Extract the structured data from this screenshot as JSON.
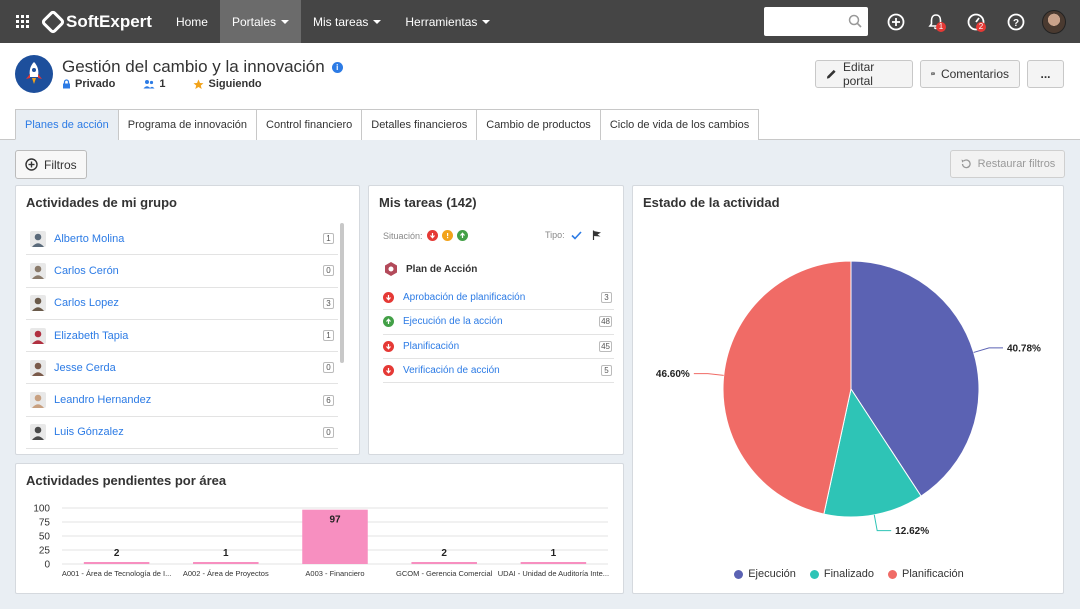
{
  "topbar": {
    "brand": "SoftExpert",
    "nav": [
      {
        "label": "Home",
        "dropdown": false,
        "active": false
      },
      {
        "label": "Portales",
        "dropdown": true,
        "active": true
      },
      {
        "label": "Mis tareas",
        "dropdown": true,
        "active": false
      },
      {
        "label": "Herramientas",
        "dropdown": true,
        "active": false
      }
    ],
    "search": {
      "value": "",
      "placeholder": ""
    },
    "notifications_badge": "1",
    "activity_badge": "2"
  },
  "portal": {
    "title": "Gestión del cambio y la innovación",
    "privacy": "Privado",
    "members": "1",
    "following": "Siguiendo",
    "buttons": {
      "edit": "Editar portal",
      "comments": "Comentarios",
      "more": "..."
    }
  },
  "tabs": [
    "Planes de acción",
    "Programa de innovación",
    "Control financiero",
    "Detalles financieros",
    "Cambio de productos",
    "Ciclo de vida de los cambios"
  ],
  "filters": {
    "filter_label": "Filtros",
    "restore_label": "Restaurar filtros"
  },
  "group_panel": {
    "title": "Actividades de mi grupo",
    "members": [
      {
        "name": "Alberto Molina",
        "count": "1",
        "color": "#5a6a7a"
      },
      {
        "name": "Carlos Cerón",
        "count": "0",
        "color": "#8a7a6a"
      },
      {
        "name": "Carlos Lopez",
        "count": "3",
        "color": "#6a5a4a"
      },
      {
        "name": "Elizabeth Tapia",
        "count": "1",
        "color": "#b03040"
      },
      {
        "name": "Jesse Cerda",
        "count": "0",
        "color": "#7a5a4a"
      },
      {
        "name": "Leandro Hernandez",
        "count": "6",
        "color": "#c8a080"
      },
      {
        "name": "Luis Gónzalez",
        "count": "0",
        "color": "#4a4a4a"
      }
    ]
  },
  "tasks_panel": {
    "title": "Mis tareas (142)",
    "situation_label": "Situación:",
    "type_label": "Tipo:",
    "group_title": "Plan de Acción",
    "items": [
      {
        "label": "Aprobación de planificación",
        "count": "3",
        "status": "late"
      },
      {
        "label": "Ejecución de la acción",
        "count": "48",
        "status": "ontime"
      },
      {
        "label": "Planificación",
        "count": "45",
        "status": "late"
      },
      {
        "label": "Verificación de acción",
        "count": "5",
        "status": "late"
      }
    ]
  },
  "pending_panel": {
    "title": "Actividades pendientes por área"
  },
  "status_panel": {
    "title": "Estado de la actividad"
  },
  "chart_data": [
    {
      "type": "bar",
      "title": "Actividades pendientes por área",
      "categories": [
        "A001 - Área de Tecnología de I...",
        "A002 - Área de Proyectos",
        "A003 - Financiero",
        "GCOM - Gerencia Comercial",
        "UDAI - Unidad de Auditoría Inte..."
      ],
      "values": [
        2,
        1,
        97,
        2,
        1
      ],
      "yticks": [
        "100",
        "75",
        "50",
        "25",
        "0"
      ],
      "ylim": [
        0,
        100
      ],
      "color": "#f78fc0",
      "grid": true
    },
    {
      "type": "pie",
      "title": "Estado de la actividad",
      "labels": [
        "Ejecución",
        "Finalizado",
        "Planificación"
      ],
      "values": [
        40.78,
        12.62,
        46.6
      ],
      "value_labels": [
        "40.78%",
        "12.62%",
        "46.60%"
      ],
      "colors": [
        "#5b62b3",
        "#2ec4b6",
        "#f06b66"
      ],
      "legend": "bottom"
    }
  ]
}
